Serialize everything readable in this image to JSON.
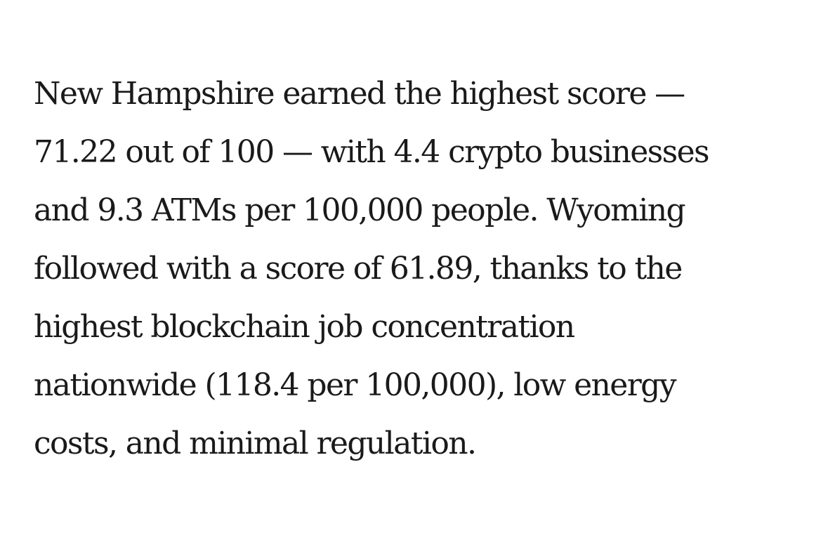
{
  "article": {
    "lines": [
      "New Hampshire earned the highest score —",
      "71.22 out of 100 — with 4.4 crypto businesses",
      "and 9.3 ATMs per 100,000 people. Wyoming",
      "followed with a score of 61.89, thanks to the",
      "highest blockchain job concentration",
      "nationwide (118.4 per 100,000), low energy",
      "costs, and minimal regulation."
    ]
  }
}
